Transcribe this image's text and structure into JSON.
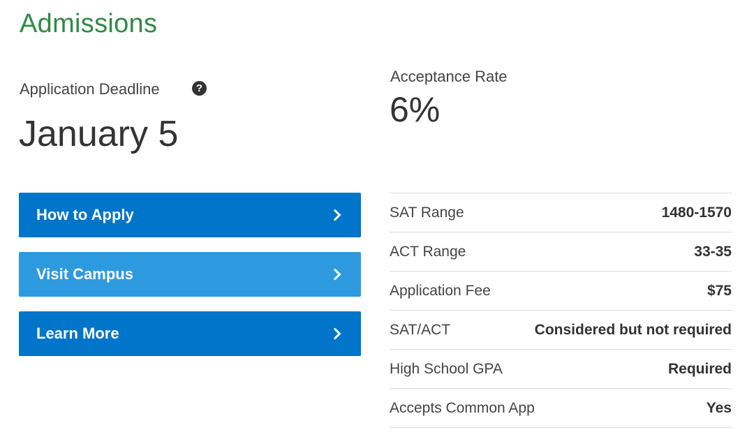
{
  "title": "Admissions",
  "deadline": {
    "label": "Application Deadline",
    "value": "January 5",
    "help_glyph": "?"
  },
  "acceptance": {
    "label": "Acceptance Rate",
    "value": "6%"
  },
  "buttons": [
    {
      "label": "How to Apply",
      "color": "#0075c9"
    },
    {
      "label": "Visit Campus",
      "color": "#2d9ae0"
    },
    {
      "label": "Learn More",
      "color": "#0075c9"
    }
  ],
  "stats": [
    {
      "label": "SAT Range",
      "value": "1480-1570"
    },
    {
      "label": "ACT Range",
      "value": "33-35"
    },
    {
      "label": "Application Fee",
      "value": "$75"
    },
    {
      "label": "SAT/ACT",
      "value": "Considered but not required"
    },
    {
      "label": "High School GPA",
      "value": "Required"
    },
    {
      "label": "Accepts Common App",
      "value": "Yes"
    }
  ],
  "colors": {
    "title": "#2f8a45",
    "primary_button": "#0075c9",
    "secondary_button": "#2d9ae0"
  }
}
